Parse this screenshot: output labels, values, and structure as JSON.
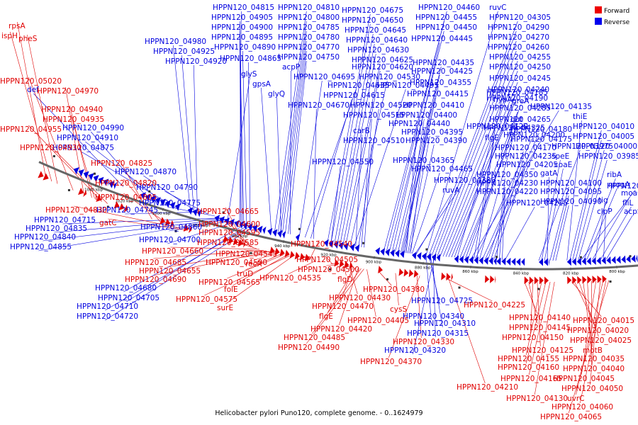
{
  "caption": "Helicobacter pylori Puno120, complete genome. - 0..1624979",
  "colors": {
    "forward": "#e00000",
    "reverse": "#0000e0"
  },
  "legend": [
    {
      "label": "Forward",
      "color": "#ee0000"
    },
    {
      "label": "Reverse",
      "color": "#0000ee"
    }
  ],
  "scale_ticks": [
    "1040 kbp",
    "1020 kbp",
    "1000 kbp",
    "980 kbp",
    "960 kbp",
    "940 kbp",
    "920 kbp",
    "900 kbp",
    "880 kbp",
    "860 kbp",
    "840 kbp",
    "820 kbp",
    "800 kbp"
  ],
  "reverse_labels": [
    "HPPN120_04980",
    "HPPN120_04925",
    "HPPN120_04920",
    "HPPN120_04815",
    "HPPN120_04905",
    "HPPN120_04900",
    "HPPN120_04895",
    "HPPN120_04890",
    "HPPN120_04865",
    "HPPN120_04810",
    "HPPN120_04800",
    "HPPN120_04785",
    "HPPN120_04780",
    "HPPN120_04770",
    "HPPN120_04750",
    "acpP",
    "glyS",
    "gpsA",
    "glyQ",
    "HPPN120_04695",
    "HPPN120_04635",
    "HPPN120_04615",
    "HPPN120_04670",
    "HPPN120_04675",
    "HPPN120_04650",
    "HPPN120_04645",
    "HPPN120_04640",
    "HPPN120_04630",
    "HPPN120_04625",
    "HPPN120_04620",
    "HPPN120_04530",
    "HPPN120_04495",
    "HPPN120_04520",
    "HPPN120_04515",
    "carB",
    "HPPN120_04510",
    "HPPN120_04550",
    "HPPN120_04460",
    "HPPN120_04455",
    "HPPN120_04450",
    "HPPN120_04445",
    "HPPN120_04435",
    "HPPN120_04425",
    "HPPN120_04355",
    "HPPN120_04415",
    "HPPN120_04410",
    "HPPN120_04400",
    "HPPN120_04440",
    "HPPN120_04395",
    "HPPN120_04390",
    "HPPN120_04365",
    "HPPN120_04465",
    "HPPN120_04385",
    "ruvA",
    "ruvC",
    "HPPN120_04305",
    "HPPN120_04290",
    "HPPN120_04270",
    "HPPN120_04260",
    "HPPN120_04255",
    "HPPN120_04250",
    "HPPN120_04245",
    "HPPN120_04240",
    "HPPN120_04190",
    "HPPN120_04185",
    "hypA",
    "HPPN120_04285",
    "HPPN120_04265",
    "HPPN120_04325",
    "greA",
    "HPPN120_04135",
    "HPPN120_04120",
    "flgE",
    "dut",
    "HPPN120_04180",
    "HPPN120_04175",
    "HPPN120_04170",
    "HPPN120_04235",
    "HPPN120_04205",
    "HPPN120_04200",
    "HPPN120_04350",
    "HPPN120_04230",
    "HPPN120_04220",
    "HPPN120_04215",
    "thiE",
    "HPPN120_04010",
    "HPPN120_04005",
    "HPPN120_04000",
    "HPPN120_03985",
    "HPPN120_03975",
    "speE",
    "coaE",
    "gatA",
    "HPPN120_04100",
    "HPPN120_04095",
    "HPPN120_04090",
    "HPPN120_04085",
    "ribA",
    "mogA",
    "moaC",
    "tig",
    "fliL",
    "clpP",
    "acpS",
    "def",
    "HPPN120_04990",
    "HPPN120_04910",
    "HPPN120_04875",
    "HPPN120_04870",
    "HPPN120_04790",
    "HPPN120_04745",
    "HPPN120_04775",
    "HPPN120_04715",
    "HPPN120_04835",
    "HPPN120_04840",
    "HPPN120_04855",
    "HPPN120_04860",
    "HPPN120_04700",
    "HPPN120_04680",
    "HPPN120_04705",
    "HPPN120_04710",
    "HPPN120_04720",
    "HPPN120_04725",
    "HPPN120_04340",
    "HPPN120_04310",
    "HPPN120_04315",
    "HPPN120_04320",
    "HPPN120_04345"
  ],
  "forward_labels": [
    "rpsA",
    "ispH",
    "pheS",
    "HPPN120_05020",
    "HPPN120_04970",
    "HPPN120_04940",
    "HPPN120_04935",
    "HPPN120_04955",
    "HPPN120_04930",
    "HPPN120_04825",
    "HPPN120_04820",
    "HPPN120_04805",
    "HPPN120_04830",
    "gatC",
    "HPPN120_04665",
    "HPPN120_04600",
    "HPPN120_04595",
    "HPPN120_04585",
    "HPPN120_04660",
    "HPPN120_04685",
    "HPPN120_04655",
    "HPPN120_04690",
    "HPPN120_04545",
    "HPPN120_04590",
    "recR",
    "truD",
    "HPPN120_04565",
    "folE",
    "HPPN120_04575",
    "surE",
    "HPPN120_04540",
    "HPPN120_04535",
    "HPPN120_04505",
    "HPPN120_04500",
    "flgD",
    "HPPN120_04430",
    "HPPN120_04470",
    "flgE",
    "HPPN120_04420",
    "HPPN120_04485",
    "HPPN120_04490",
    "HPPN120_04405",
    "HPPN120_04380",
    "cysS",
    "HPPN120_04330",
    "HPPN120_04370",
    "HPPN120_04225",
    "HPPN120_04210",
    "HPPN120_04140",
    "HPPN120_04145",
    "HPPN120_04150",
    "HPPN120_04125",
    "HPPN120_04155",
    "HPPN120_04160",
    "HPPN120_04165",
    "HPPN120_04130",
    "HPPN120_04015",
    "HPPN120_04020",
    "HPPN120_04025",
    "motB",
    "HPPN120_04035",
    "HPPN120_04040",
    "HPPN120_04045",
    "HPPN120_04050",
    "uvrC",
    "HPPN120_04060",
    "HPPN120_04065"
  ]
}
